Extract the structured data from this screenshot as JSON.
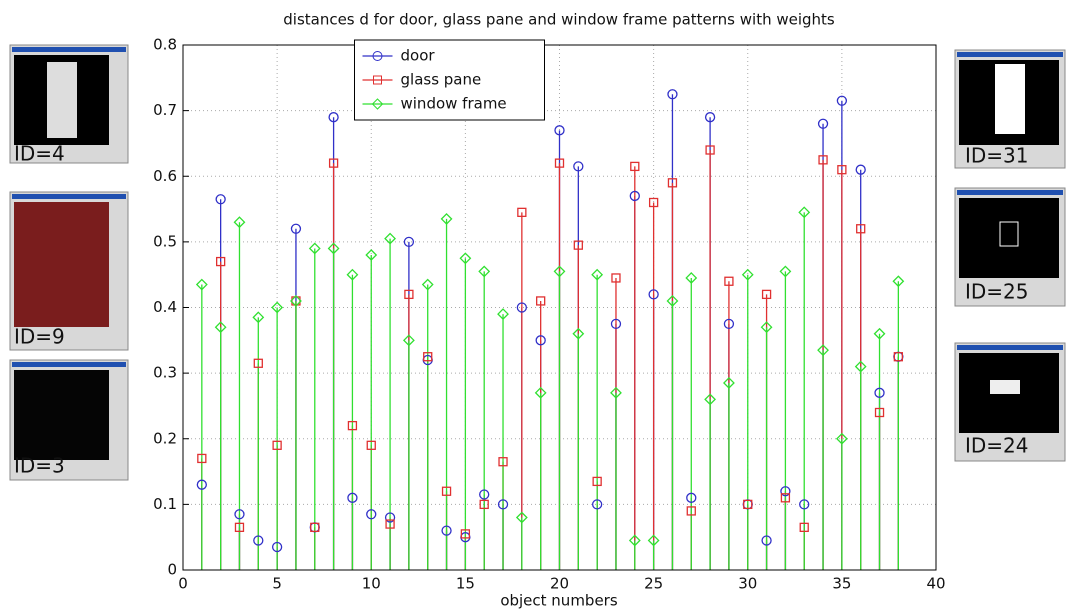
{
  "chart_data": {
    "type": "stem",
    "title": "distances d for  door, glass pane and window frame patterns with weights",
    "xlabel": "object numbers",
    "x": [
      1,
      2,
      3,
      4,
      5,
      6,
      7,
      8,
      9,
      10,
      11,
      12,
      13,
      14,
      15,
      16,
      17,
      18,
      19,
      20,
      21,
      22,
      23,
      24,
      25,
      26,
      27,
      28,
      29,
      30,
      31,
      32,
      33,
      34,
      35,
      36,
      37,
      38
    ],
    "series": [
      {
        "name": "door",
        "color": "#3030c8",
        "marker": "circle",
        "values": [
          0.13,
          0.565,
          0.085,
          0.045,
          0.035,
          0.52,
          0.065,
          0.69,
          0.11,
          0.085,
          0.08,
          0.5,
          0.32,
          0.06,
          0.05,
          0.115,
          0.1,
          0.4,
          0.35,
          0.67,
          0.615,
          0.1,
          0.375,
          0.57,
          0.42,
          0.725,
          0.11,
          0.69,
          0.375,
          0.1,
          0.045,
          0.12,
          0.1,
          0.68,
          0.715,
          0.61,
          0.27,
          0.325
        ]
      },
      {
        "name": "glass pane",
        "color": "#e03030",
        "marker": "square",
        "values": [
          0.17,
          0.47,
          0.065,
          0.315,
          0.19,
          0.41,
          0.065,
          0.62,
          0.22,
          0.19,
          0.07,
          0.42,
          0.325,
          0.12,
          0.055,
          0.1,
          0.165,
          0.545,
          0.41,
          0.62,
          0.495,
          0.135,
          0.445,
          0.615,
          0.56,
          0.59,
          0.09,
          0.64,
          0.44,
          0.1,
          0.42,
          0.11,
          0.065,
          0.625,
          0.61,
          0.52,
          0.24,
          0.325
        ]
      },
      {
        "name": "window frame",
        "color": "#30e030",
        "marker": "diamond",
        "values": [
          0.435,
          0.37,
          0.53,
          0.385,
          0.4,
          0.41,
          0.49,
          0.49,
          0.45,
          0.48,
          0.505,
          0.35,
          0.435,
          0.535,
          0.475,
          0.455,
          0.39,
          0.08,
          0.27,
          0.455,
          0.36,
          0.45,
          0.27,
          0.045,
          0.045,
          0.41,
          0.445,
          0.26,
          0.285,
          0.45,
          0.37,
          0.455,
          0.545,
          0.335,
          0.2,
          0.31,
          0.36,
          0.44
        ]
      }
    ],
    "xlim": [
      0,
      40
    ],
    "xticks": [
      0,
      5,
      10,
      15,
      20,
      25,
      30,
      35,
      40
    ],
    "ylim": [
      0,
      0.8
    ],
    "yticks": [
      0,
      0.1,
      0.2,
      0.3,
      0.4,
      0.5,
      0.6,
      0.7,
      0.8
    ],
    "grid": true,
    "legend": "upper center"
  },
  "thumbnails_left": [
    {
      "label": "ID=4"
    },
    {
      "label": "ID=9"
    },
    {
      "label": "ID=3"
    }
  ],
  "thumbnails_right": [
    {
      "label": "ID=31"
    },
    {
      "label": "ID=25"
    },
    {
      "label": "ID=24"
    }
  ]
}
